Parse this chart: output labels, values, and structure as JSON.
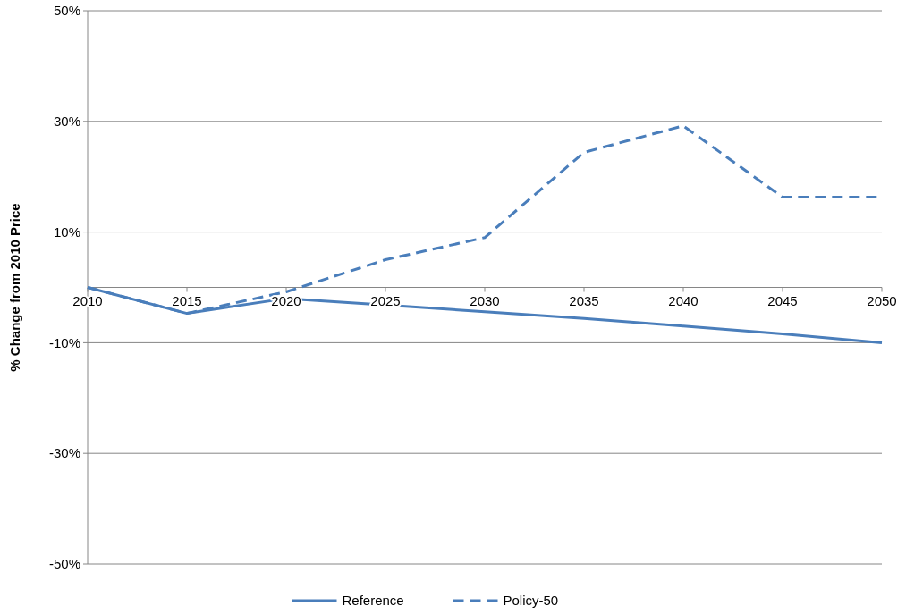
{
  "chart_data": {
    "type": "line",
    "ylabel": "% Change from 2010 Price",
    "x": [
      2010,
      2015,
      2020,
      2025,
      2030,
      2035,
      2040,
      2045,
      2050
    ],
    "series": [
      {
        "name": "Reference",
        "color": "#4a7ebb",
        "line_style": "solid",
        "values": [
          0,
          -4.7,
          -2,
          -3.2,
          -4.4,
          -5.6,
          -7,
          -8.4,
          -10
        ]
      },
      {
        "name": "Policy-50",
        "color": "#4a7ebb",
        "line_style": "dashed",
        "values": [
          0,
          -4.7,
          -0.8,
          5,
          9,
          24.4,
          29.2,
          16.3,
          16.3
        ]
      }
    ],
    "xlim": [
      2010,
      2050
    ],
    "xticks": [
      2010,
      2015,
      2020,
      2025,
      2030,
      2035,
      2040,
      2045,
      2050
    ],
    "ylim": [
      -50,
      50
    ],
    "yticks": [
      {
        "value": -50,
        "label": "-50%"
      },
      {
        "value": -30,
        "label": "-30%"
      },
      {
        "value": -10,
        "label": "-10%"
      },
      {
        "value": 10,
        "label": "10%"
      },
      {
        "value": 30,
        "label": "30%"
      },
      {
        "value": 50,
        "label": "50%"
      }
    ],
    "grid": "y",
    "legend": "bottom"
  }
}
